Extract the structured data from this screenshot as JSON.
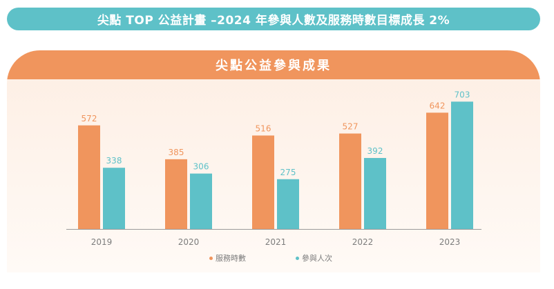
{
  "banner": {
    "title": "尖點 TOP 公益計畫 –2024 年參與人數及服務時數目標成長 2%"
  },
  "panel": {
    "title": "尖點公益參與成果"
  },
  "colors": {
    "banner": "#5ec1c8",
    "header": "#f0955d",
    "hours": "#f0955d",
    "participants": "#5ec1c8",
    "axis": "#9a9a9a",
    "tick_text": "#7c7c7c"
  },
  "chart_data": {
    "type": "bar",
    "title": "尖點公益參與成果",
    "categories": [
      "2019",
      "2020",
      "2021",
      "2022",
      "2023"
    ],
    "series": [
      {
        "name": "服務時數",
        "values": [
          572,
          385,
          516,
          527,
          642
        ]
      },
      {
        "name": "參與人次",
        "values": [
          338,
          306,
          275,
          392,
          703
        ]
      }
    ],
    "ylim": [
      0,
      750
    ],
    "grid": false,
    "legend_position": "bottom",
    "xlabel": "",
    "ylabel": ""
  }
}
